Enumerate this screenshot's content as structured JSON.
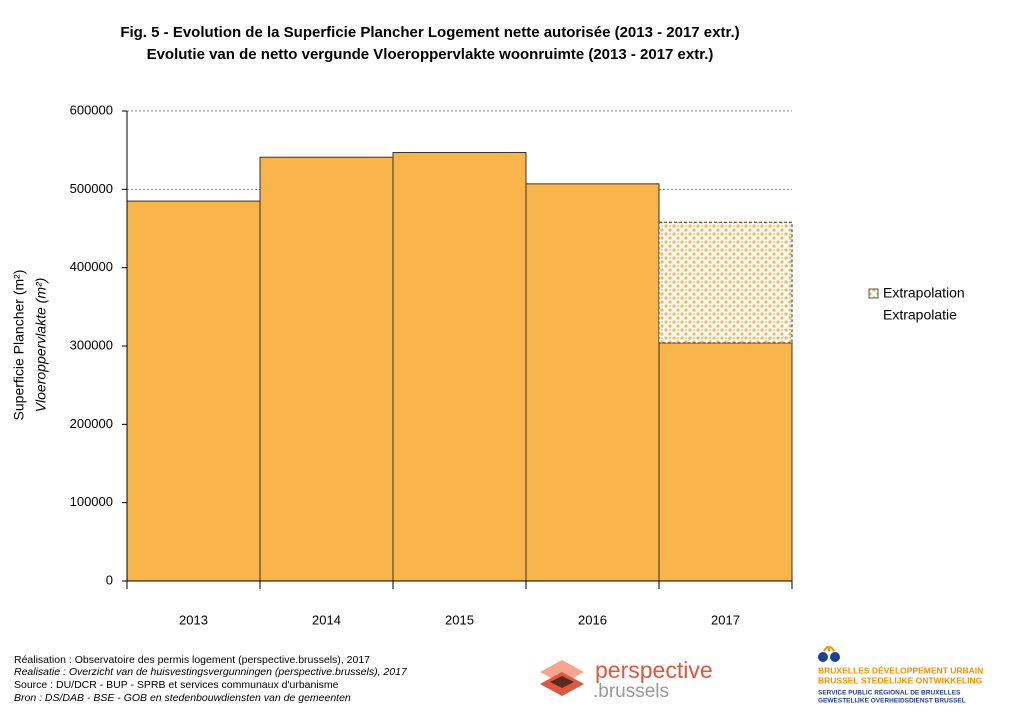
{
  "chart_data": {
    "type": "bar",
    "stacked": true,
    "title": "Fig. 5 - Evolution de la Superficie Plancher Logement nette autorisée (2013 - 2017 extr.)",
    "subtitle": "Evolutie van de netto vergunde Vloeroppervlakte woonruimte (2013 - 2017 extr.)",
    "y_label": "Superficie Plancher (m²)",
    "y_label_2": "Vloeroppervlakte (m²)",
    "categories": [
      "2013",
      "2014",
      "2015",
      "2016",
      "2017"
    ],
    "series": [
      {
        "color": "#f9b44c",
        "values": [
          485000,
          541000,
          547000,
          507000,
          304000
        ]
      },
      {
        "name": "Extrapolation",
        "name_2": "Extrapolatie",
        "color": "#f9b44c",
        "pattern": "dots",
        "values": [
          null,
          null,
          null,
          null,
          154000
        ]
      }
    ],
    "ylim": [
      0,
      600000
    ],
    "yticks": [
      0,
      100000,
      200000,
      300000,
      400000,
      500000,
      600000
    ],
    "grid": true,
    "legend": "right"
  },
  "footer": [
    "Réalisation : Observatoire des permis logement (perspective.brussels), 2017",
    "Realisatie : Overzicht van de huisvestingsvergunningen (perspective.brussels), 2017",
    "Source : DU/DCR - BUP - SPRB et services communaux d'urbanisme",
    "Bron : DS/DAB - BSE - GOB en stedenbouwdiensten van de gemeenten"
  ],
  "logos": {
    "perspective": "perspective",
    "brussels": ".brussels",
    "urban": [
      "BRUXELLES DÉVELOPPEMENT URBAIN",
      "BRUSSEL STEDELIJKE ONTWIKKELING",
      "SERVICE PUBLIC RÉGIONAL DE BRUXELLES",
      "GEWESTELIJKE OVERHEIDSDIENST BRUSSEL"
    ]
  }
}
